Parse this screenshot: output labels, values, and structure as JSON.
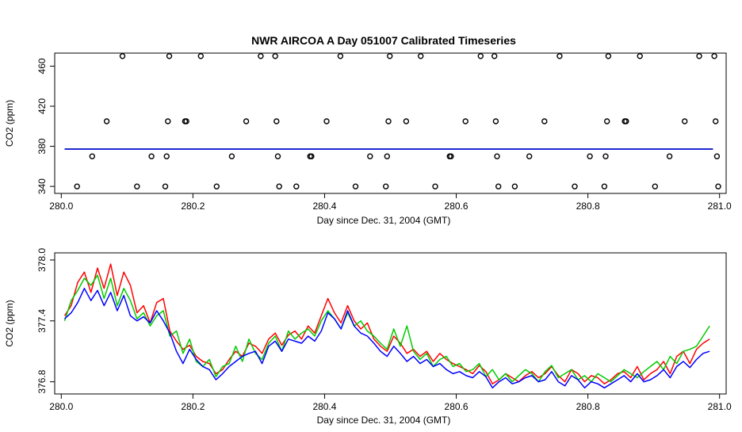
{
  "chart_data": [
    {
      "type": "scatter",
      "title": "NWR AIRCOA A  Day 051007  Calibrated Timeseries",
      "xlabel": "Day since Dec. 31, 2004 (GMT)",
      "ylabel": "CO2 (ppm)",
      "xlim": [
        279.99,
        281.01
      ],
      "ylim": [
        333,
        473
      ],
      "xticks": [
        "280.0",
        "280.2",
        "280.4",
        "280.6",
        "280.8",
        "281.0"
      ],
      "yticks": [
        "340",
        "380",
        "420",
        "460"
      ],
      "grid": false,
      "points": [
        {
          "x": 280.024,
          "y": 340
        },
        {
          "x": 280.047,
          "y": 370
        },
        {
          "x": 280.069,
          "y": 405
        },
        {
          "x": 280.093,
          "y": 470
        },
        {
          "x": 280.115,
          "y": 340
        },
        {
          "x": 280.137,
          "y": 370
        },
        {
          "x": 280.158,
          "y": 340
        },
        {
          "x": 280.16,
          "y": 370
        },
        {
          "x": 280.162,
          "y": 405
        },
        {
          "x": 280.164,
          "y": 470
        },
        {
          "x": 280.188,
          "y": 405
        },
        {
          "x": 280.19,
          "y": 405
        },
        {
          "x": 280.212,
          "y": 470
        },
        {
          "x": 280.236,
          "y": 340
        },
        {
          "x": 280.259,
          "y": 370
        },
        {
          "x": 280.281,
          "y": 405
        },
        {
          "x": 280.303,
          "y": 470
        },
        {
          "x": 280.325,
          "y": 470
        },
        {
          "x": 280.327,
          "y": 405
        },
        {
          "x": 280.329,
          "y": 370
        },
        {
          "x": 280.331,
          "y": 340
        },
        {
          "x": 280.357,
          "y": 340
        },
        {
          "x": 280.378,
          "y": 370
        },
        {
          "x": 280.38,
          "y": 370
        },
        {
          "x": 280.403,
          "y": 405
        },
        {
          "x": 280.424,
          "y": 470
        },
        {
          "x": 280.447,
          "y": 340
        },
        {
          "x": 280.469,
          "y": 370
        },
        {
          "x": 280.493,
          "y": 340
        },
        {
          "x": 280.495,
          "y": 370
        },
        {
          "x": 280.497,
          "y": 405
        },
        {
          "x": 280.499,
          "y": 470
        },
        {
          "x": 280.524,
          "y": 405
        },
        {
          "x": 280.546,
          "y": 470
        },
        {
          "x": 280.568,
          "y": 340
        },
        {
          "x": 280.59,
          "y": 370
        },
        {
          "x": 280.592,
          "y": 370
        },
        {
          "x": 280.614,
          "y": 405
        },
        {
          "x": 280.637,
          "y": 470
        },
        {
          "x": 280.658,
          "y": 470
        },
        {
          "x": 280.66,
          "y": 405
        },
        {
          "x": 280.662,
          "y": 370
        },
        {
          "x": 280.664,
          "y": 340
        },
        {
          "x": 280.689,
          "y": 340
        },
        {
          "x": 280.711,
          "y": 370
        },
        {
          "x": 280.734,
          "y": 405
        },
        {
          "x": 280.757,
          "y": 470
        },
        {
          "x": 280.78,
          "y": 340
        },
        {
          "x": 280.803,
          "y": 370
        },
        {
          "x": 280.825,
          "y": 340
        },
        {
          "x": 280.827,
          "y": 370
        },
        {
          "x": 280.829,
          "y": 405
        },
        {
          "x": 280.831,
          "y": 470
        },
        {
          "x": 280.856,
          "y": 405
        },
        {
          "x": 280.858,
          "y": 405
        },
        {
          "x": 280.879,
          "y": 470
        },
        {
          "x": 280.902,
          "y": 340
        },
        {
          "x": 280.924,
          "y": 370
        },
        {
          "x": 280.947,
          "y": 405
        },
        {
          "x": 280.969,
          "y": 470
        },
        {
          "x": 280.992,
          "y": 470
        },
        {
          "x": 280.994,
          "y": 405
        },
        {
          "x": 280.996,
          "y": 370
        },
        {
          "x": 280.998,
          "y": 340
        }
      ],
      "series": [
        {
          "color": "#ff0000",
          "x": [
            280.005,
            280.99
          ],
          "values": [
            377.3,
            377.3
          ]
        },
        {
          "color": "#00cc00",
          "x": [
            280.005,
            280.99
          ],
          "values": [
            377.3,
            377.3
          ]
        },
        {
          "color": "#0000ff",
          "x": [
            280.005,
            280.99
          ],
          "values": [
            377.2,
            377.2
          ]
        }
      ]
    },
    {
      "type": "line",
      "title": "",
      "xlabel": "Day since Dec. 31, 2004 (GMT)",
      "ylabel": "CO2 (ppm)",
      "xlim": [
        279.99,
        281.01
      ],
      "ylim": [
        376.68,
        378.07
      ],
      "xticks": [
        "280.0",
        "280.2",
        "280.4",
        "280.6",
        "280.8",
        "281.0"
      ],
      "yticks": [
        "376.8",
        "377.4",
        "378.0"
      ],
      "grid": false,
      "x": [
        280.005,
        280.015,
        280.025,
        280.035,
        280.045,
        280.055,
        280.065,
        280.075,
        280.085,
        280.095,
        280.105,
        280.115,
        280.125,
        280.135,
        280.145,
        280.155,
        280.165,
        280.175,
        280.185,
        280.195,
        280.205,
        280.215,
        280.225,
        280.235,
        280.245,
        280.255,
        280.265,
        280.275,
        280.285,
        280.295,
        280.305,
        280.315,
        280.325,
        280.335,
        280.345,
        280.355,
        280.365,
        280.375,
        280.385,
        280.395,
        280.405,
        280.415,
        280.425,
        280.435,
        280.445,
        280.455,
        280.465,
        280.475,
        280.485,
        280.495,
        280.505,
        280.515,
        280.525,
        280.535,
        280.545,
        280.555,
        280.565,
        280.575,
        280.585,
        280.595,
        280.605,
        280.615,
        280.625,
        280.635,
        280.645,
        280.655,
        280.665,
        280.675,
        280.685,
        280.695,
        280.705,
        280.715,
        280.725,
        280.735,
        280.745,
        280.755,
        280.765,
        280.775,
        280.785,
        280.795,
        280.805,
        280.815,
        280.825,
        280.835,
        280.845,
        280.855,
        280.865,
        280.875,
        280.885,
        280.895,
        280.905,
        280.915,
        280.925,
        280.935,
        280.945,
        280.955,
        280.965,
        280.975,
        280.985
      ],
      "series": [
        {
          "color": "#ff0000",
          "values": [
            377.45,
            377.55,
            377.78,
            377.88,
            377.68,
            377.92,
            377.72,
            377.96,
            377.65,
            377.88,
            377.75,
            377.48,
            377.55,
            377.38,
            377.58,
            377.62,
            377.3,
            377.2,
            377.12,
            377.16,
            377.05,
            377.0,
            376.98,
            376.88,
            376.92,
            377.02,
            377.1,
            377.05,
            377.18,
            377.15,
            377.08,
            377.22,
            377.28,
            377.16,
            377.26,
            377.3,
            377.22,
            377.35,
            377.28,
            377.45,
            377.62,
            377.48,
            377.38,
            377.55,
            377.4,
            377.32,
            377.38,
            377.22,
            377.15,
            377.1,
            377.25,
            377.18,
            377.08,
            377.12,
            377.05,
            377.1,
            377.0,
            377.08,
            377.02,
            376.98,
            376.95,
            376.92,
            376.88,
            376.96,
            376.9,
            376.78,
            376.82,
            376.88,
            376.84,
            376.8,
            376.86,
            376.9,
            376.84,
            376.88,
            376.95,
            376.86,
            376.8,
            376.92,
            376.88,
            376.8,
            376.86,
            376.84,
            376.78,
            376.82,
            376.88,
            376.9,
            376.84,
            376.95,
            376.82,
            376.88,
            376.92,
            377.0,
            376.88,
            377.05,
            377.1,
            376.98,
            377.12,
            377.18,
            377.22
          ]
        },
        {
          "color": "#00cc00",
          "values": [
            377.4,
            377.6,
            377.7,
            377.82,
            377.75,
            377.85,
            377.62,
            377.82,
            377.55,
            377.72,
            377.6,
            377.42,
            377.48,
            377.35,
            377.45,
            377.5,
            377.25,
            377.3,
            377.08,
            377.22,
            377.0,
            376.95,
            377.02,
            376.85,
            376.95,
            376.98,
            377.15,
            377.0,
            377.22,
            377.08,
            377.02,
            377.18,
            377.25,
            377.1,
            377.3,
            377.22,
            377.28,
            377.32,
            377.25,
            377.4,
            377.5,
            377.42,
            377.32,
            377.48,
            377.35,
            377.4,
            377.3,
            377.25,
            377.18,
            377.12,
            377.32,
            377.15,
            377.35,
            377.1,
            377.02,
            377.08,
            376.95,
            377.02,
            377.05,
            376.95,
            376.98,
            376.9,
            376.92,
            376.98,
            376.85,
            376.92,
            376.82,
            376.88,
            376.8,
            376.86,
            376.92,
            376.88,
            376.8,
            376.9,
            376.96,
            376.84,
            376.88,
            376.92,
            376.82,
            376.86,
            376.8,
            376.88,
            376.84,
            376.8,
            376.86,
            376.92,
            376.88,
            376.84,
            376.9,
            376.95,
            377.0,
            376.92,
            377.05,
            376.98,
            377.1,
            377.12,
            377.15,
            377.25,
            377.35
          ]
        },
        {
          "color": "#0000ff",
          "values": [
            377.42,
            377.48,
            377.58,
            377.72,
            377.6,
            377.7,
            377.55,
            377.68,
            377.5,
            377.65,
            377.45,
            377.4,
            377.44,
            377.38,
            377.5,
            377.4,
            377.28,
            377.1,
            376.98,
            377.12,
            377.02,
            376.95,
            376.92,
            376.82,
            376.88,
            376.95,
            377.0,
            377.05,
            377.08,
            377.1,
            376.98,
            377.15,
            377.2,
            377.1,
            377.22,
            377.2,
            377.18,
            377.25,
            377.2,
            377.3,
            377.48,
            377.42,
            377.32,
            377.5,
            377.35,
            377.28,
            377.25,
            377.18,
            377.1,
            377.05,
            377.15,
            377.08,
            377.0,
            377.05,
            376.98,
            377.02,
            376.95,
            376.98,
            376.92,
            376.88,
            376.9,
            376.86,
            376.84,
            376.9,
            376.85,
            376.74,
            376.8,
            376.84,
            376.78,
            376.8,
            376.84,
            376.86,
            376.8,
            376.82,
            376.9,
            376.8,
            376.76,
            376.86,
            376.82,
            376.74,
            376.8,
            376.78,
            376.74,
            376.78,
            376.82,
            376.86,
            376.8,
            376.88,
            376.8,
            376.82,
            376.86,
            376.92,
            376.84,
            376.95,
            377.0,
            376.94,
            377.02,
            377.08,
            377.1
          ]
        }
      ]
    }
  ]
}
